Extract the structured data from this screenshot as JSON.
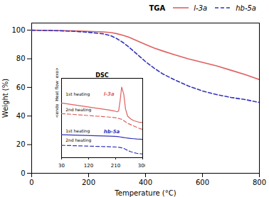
{
  "chart_data": [
    {
      "type": "line",
      "x": [
        0,
        30,
        60,
        100,
        150,
        200,
        250,
        280,
        300,
        320,
        340,
        360,
        380,
        400,
        430,
        460,
        500,
        550,
        600,
        650,
        700,
        750,
        800
      ],
      "xlabel": "Temperature (°C)",
      "ylabel": "Weight (%)",
      "xlim": [
        0,
        800
      ],
      "xticks": [
        0,
        200,
        400,
        600,
        800
      ],
      "ylim": [
        0,
        105
      ],
      "yticks": [
        0,
        20,
        40,
        60,
        80,
        100
      ],
      "legend": "top",
      "annotations": [
        "TGA"
      ],
      "series": [
        {
          "name": "l-3a",
          "color": "#e06060",
          "line_style": "solid",
          "values": [
            100,
            99.9,
            99.8,
            99.7,
            99.5,
            99.2,
            98.8,
            98.3,
            97.5,
            96.5,
            95.2,
            93.5,
            91.8,
            90.0,
            87.5,
            85.5,
            83.0,
            80.0,
            77.5,
            75.0,
            72.0,
            69.0,
            65.5
          ]
        },
        {
          "name": "hb-5a",
          "color": "#3333bb",
          "line_style": "dashed",
          "values": [
            100,
            99.9,
            99.8,
            99.6,
            99.2,
            98.5,
            97.5,
            96.0,
            94.0,
            91.5,
            88.5,
            85.0,
            81.5,
            78.0,
            73.5,
            69.5,
            65.5,
            61.0,
            57.5,
            55.0,
            53.0,
            51.5,
            49.5
          ]
        }
      ]
    },
    {
      "type": "line",
      "title": "DSC",
      "x": [
        30,
        50,
        70,
        90,
        110,
        130,
        150,
        170,
        190,
        205,
        215,
        220,
        225,
        230,
        237,
        243,
        250,
        260,
        270,
        280,
        290,
        300
      ],
      "ylabel": "<endo  Heat flow  exo>",
      "xlim": [
        30,
        300
      ],
      "xticks": [
        30,
        120,
        210,
        300
      ],
      "ylim": [
        0.1,
        1.0
      ],
      "tick_labels": "x",
      "annotations": [
        {
          "text": "1st heating"
        },
        {
          "text": "2nd heating"
        },
        {
          "text": "1st heating"
        },
        {
          "text": "2nd heating"
        },
        {
          "text": "l-3a",
          "color": "#e06060"
        },
        {
          "text": "hb-5a",
          "color": "#3333bb"
        }
      ],
      "series": [
        {
          "color": "#e06060",
          "line_style": "solid",
          "values": [
            0.72,
            0.71,
            0.7,
            0.69,
            0.68,
            0.67,
            0.66,
            0.65,
            0.64,
            0.63,
            0.62,
            0.63,
            0.75,
            0.9,
            0.82,
            0.65,
            0.57,
            0.54,
            0.52,
            0.51,
            0.5,
            0.5
          ]
        },
        {
          "color": "#e06060",
          "line_style": "dashed",
          "values": [
            0.6,
            0.595,
            0.59,
            0.585,
            0.58,
            0.575,
            0.57,
            0.565,
            0.56,
            0.555,
            0.55,
            0.545,
            0.54,
            0.535,
            0.52,
            0.505,
            0.49,
            0.475,
            0.46,
            0.445,
            0.43,
            0.42
          ]
        },
        {
          "color": "#3333bb",
          "line_style": "solid",
          "values": [
            0.36,
            0.358,
            0.356,
            0.354,
            0.352,
            0.35,
            0.348,
            0.346,
            0.344,
            0.342,
            0.34,
            0.338,
            0.335,
            0.332,
            0.328,
            0.325,
            0.322,
            0.318,
            0.315,
            0.312,
            0.31,
            0.308
          ]
        },
        {
          "color": "#3333bb",
          "line_style": "dashed",
          "values": [
            0.24,
            0.238,
            0.236,
            0.234,
            0.232,
            0.23,
            0.228,
            0.226,
            0.224,
            0.222,
            0.22,
            0.218,
            0.216,
            0.212,
            0.205,
            0.195,
            0.182,
            0.168,
            0.158,
            0.15,
            0.145,
            0.142
          ]
        }
      ]
    }
  ]
}
